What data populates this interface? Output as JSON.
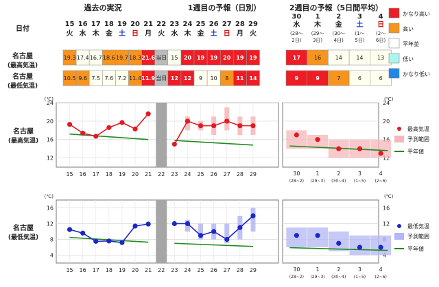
{
  "headers": {
    "past": "過去の実況",
    "week1": "1週目の予報（日別）",
    "week2": "2週目の予報（5日間平均）",
    "date_label": "日付"
  },
  "rows": {
    "max_label": [
      "名古屋",
      "(最高気温)"
    ],
    "min_label": [
      "名古屋",
      "(最低気温)"
    ]
  },
  "days": [
    {
      "d": "15",
      "w": "火"
    },
    {
      "d": "16",
      "w": "水"
    },
    {
      "d": "17",
      "w": "木"
    },
    {
      "d": "18",
      "w": "金"
    },
    {
      "d": "19",
      "w": "土"
    },
    {
      "d": "20",
      "w": "日"
    },
    {
      "d": "21",
      "w": "月"
    },
    {
      "d": "22",
      "w": "火"
    },
    {
      "d": "23",
      "w": "水"
    },
    {
      "d": "24",
      "w": "木"
    },
    {
      "d": "25",
      "w": "金"
    },
    {
      "d": "26",
      "w": "土"
    },
    {
      "d": "27",
      "w": "日"
    },
    {
      "d": "28",
      "w": "月"
    },
    {
      "d": "29",
      "w": "火"
    }
  ],
  "periods": [
    {
      "d": "30",
      "w": "水",
      "r": "(28～",
      "r2": "2日)",
      "x": "30",
      "xr": "(28~2)"
    },
    {
      "d": "1",
      "w": "木",
      "r": "(29～",
      "r2": "3日)",
      "x": "1",
      "xr": "(29~3)"
    },
    {
      "d": "2",
      "w": "金",
      "r": "(30～",
      "r2": "4日)",
      "x": "2",
      "xr": "(30~4)"
    },
    {
      "d": "3",
      "w": "土",
      "r": "(1～",
      "r2": "5日)",
      "x": "3",
      "xr": "(1~5)"
    },
    {
      "d": "4",
      "w": "日",
      "r": "(2～",
      "r2": "6日)",
      "x": "4",
      "xr": "(2~6)"
    }
  ],
  "table": {
    "today_label": "当日",
    "max_daily": [
      "19.3",
      "17.4",
      "16.7",
      "18.6",
      "19.7",
      "18.3",
      "21.6",
      "当日",
      "15",
      "20",
      "19",
      "19",
      "20",
      "19",
      "19"
    ],
    "max_daily_cls": [
      "y",
      "w",
      "w",
      "y",
      "y",
      "y",
      "r",
      "g",
      "w",
      "r",
      "r",
      "r",
      "r",
      "r",
      "r"
    ],
    "min_daily": [
      "10.5",
      "9.6",
      "7.5",
      "7.6",
      "7.2",
      "11.4",
      "11.9",
      "当日",
      "12",
      "12",
      "9",
      "10",
      "8",
      "11",
      "14"
    ],
    "min_daily_cls": [
      "y",
      "y",
      "w",
      "w",
      "w",
      "y",
      "r",
      "g",
      "r",
      "r",
      "w",
      "w",
      "y",
      "r",
      "r"
    ],
    "max_period": [
      "17",
      "16",
      "14",
      "14",
      "13"
    ],
    "max_period_cls": [
      "r",
      "y",
      "w",
      "w",
      "w"
    ],
    "min_period": [
      "9",
      "9",
      "7",
      "6",
      "6"
    ],
    "min_period_cls": [
      "r",
      "r",
      "y",
      "w",
      "w"
    ]
  },
  "legend_table": [
    {
      "label": "かなり高い",
      "color": "#ee1c25"
    },
    {
      "label": "高い",
      "color": "#f7941d"
    },
    {
      "label": "平年並",
      "color": "#ffffff"
    },
    {
      "label": "低い",
      "color": "#aaf5f0"
    },
    {
      "label": "かなり低い",
      "color": "#1e88e5"
    }
  ],
  "colors": {
    "r": "#ee1c25",
    "y": "#f7941d",
    "w": "#fffff0",
    "g": "#bbbbbb",
    "max_line": "#dd1c24",
    "max_range": "#f7b6b8",
    "min_line": "#1c27c8",
    "min_range": "#b3b7f3",
    "normal": "#1f8a1f",
    "today_band": "#a6a6a6"
  },
  "chart_data": [
    {
      "type": "line",
      "name": "名古屋(最高気温)",
      "unit": "(℃)",
      "ylim": [
        10,
        24
      ],
      "yticks": [
        12,
        16,
        20,
        24
      ],
      "observed": {
        "x": [
          "15",
          "16",
          "17",
          "18",
          "19",
          "20",
          "21"
        ],
        "y": [
          19.3,
          17.4,
          16.7,
          18.6,
          19.7,
          18.3,
          21.6
        ]
      },
      "forecast": {
        "x": [
          "23",
          "24",
          "25",
          "26",
          "27",
          "28",
          "29"
        ],
        "y": [
          15,
          20,
          19,
          19,
          20,
          19,
          19
        ],
        "range": [
          null,
          [
            18,
            21
          ],
          [
            18,
            20
          ],
          [
            17,
            21
          ],
          [
            18,
            23
          ],
          [
            17,
            21
          ],
          [
            17,
            21
          ]
        ]
      },
      "normal_daily": {
        "x": [
          "15",
          "21"
        ],
        "y": [
          17.2,
          16.0
        ],
        "x2": [
          "23",
          "29"
        ],
        "y2": [
          15.8,
          14.8
        ]
      },
      "period_forecast": {
        "x": [
          "30",
          "1",
          "2",
          "3",
          "4"
        ],
        "y": [
          17,
          16,
          14,
          14,
          13
        ],
        "range": [
          [
            14,
            18
          ],
          [
            14,
            17
          ],
          [
            12,
            16
          ],
          [
            12,
            16
          ],
          [
            12,
            16
          ]
        ]
      },
      "normal_period": {
        "y": [
          14.6,
          14.3,
          14.0,
          13.8,
          13.6
        ]
      },
      "legend": [
        {
          "label": "最高気温"
        },
        {
          "label": "予測範囲"
        },
        {
          "label": "平年値"
        }
      ]
    },
    {
      "type": "line",
      "name": "名古屋(最低気温)",
      "unit": "(℃)",
      "ylim": [
        2,
        18
      ],
      "yticks": [
        4,
        8,
        12,
        16
      ],
      "observed": {
        "x": [
          "15",
          "16",
          "17",
          "18",
          "19",
          "20",
          "21"
        ],
        "y": [
          10.5,
          9.6,
          7.5,
          7.6,
          7.2,
          11.4,
          11.9
        ]
      },
      "forecast": {
        "x": [
          "23",
          "24",
          "25",
          "26",
          "27",
          "28",
          "29"
        ],
        "y": [
          12,
          12,
          9,
          10,
          8,
          11,
          14
        ],
        "range": [
          null,
          [
            10,
            13
          ],
          [
            8,
            12
          ],
          [
            8,
            12
          ],
          [
            7,
            12
          ],
          [
            8,
            14
          ],
          [
            10,
            16
          ]
        ]
      },
      "normal_daily": {
        "x": [
          "15",
          "21"
        ],
        "y": [
          8.5,
          7.3
        ],
        "x2": [
          "23",
          "29"
        ],
        "y2": [
          7.0,
          6.2
        ]
      },
      "period_forecast": {
        "x": [
          "30",
          "1",
          "2",
          "3",
          "4"
        ],
        "y": [
          9,
          9,
          7,
          6,
          6
        ],
        "range": [
          [
            6,
            11
          ],
          [
            6,
            11
          ],
          [
            5,
            10
          ],
          [
            4,
            9
          ],
          [
            4,
            9
          ]
        ]
      },
      "normal_period": {
        "y": [
          5.9,
          5.8,
          5.6,
          5.4,
          5.2
        ]
      },
      "legend": [
        {
          "label": "最低気温"
        },
        {
          "label": "予測範囲"
        },
        {
          "label": "平年値"
        }
      ]
    }
  ]
}
